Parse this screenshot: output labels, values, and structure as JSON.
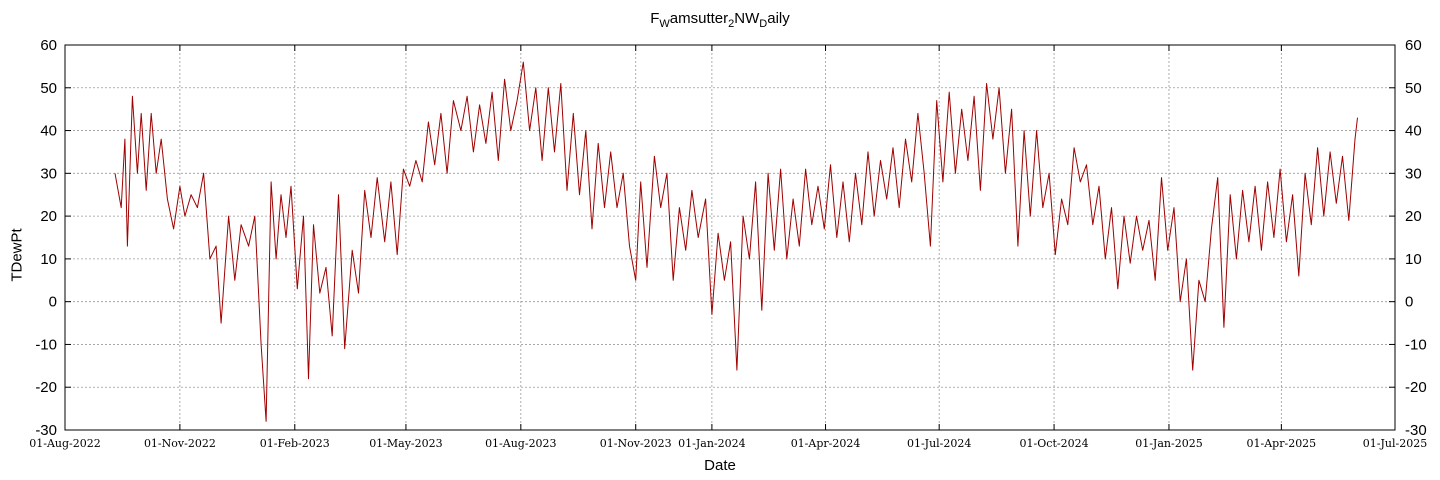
{
  "chart_data": {
    "type": "line",
    "title": {
      "p1": "F",
      "s1": "W",
      "p2": "amsutter",
      "s2": "2",
      "p3": "NW",
      "s3": "D",
      "p4": "aily"
    },
    "xlabel": "Date",
    "ylabel": "TDewPt",
    "ylim": [
      -30,
      60
    ],
    "yticks": [
      -30,
      -20,
      -10,
      0,
      10,
      20,
      30,
      40,
      50,
      60
    ],
    "xlim": [
      "2022-08-01",
      "2025-07-01"
    ],
    "xticks": [
      {
        "date": "2022-08-01",
        "label": "01-Aug-2022"
      },
      {
        "date": "2022-11-01",
        "label": "01-Nov-2022"
      },
      {
        "date": "2023-02-01",
        "label": "01-Feb-2023"
      },
      {
        "date": "2023-05-01",
        "label": "01-May-2023"
      },
      {
        "date": "2023-08-01",
        "label": "01-Aug-2023"
      },
      {
        "date": "2023-11-01",
        "label": "01-Nov-2023"
      },
      {
        "date": "2024-01-01",
        "label": "01-Jan-2024"
      },
      {
        "date": "2024-04-01",
        "label": "01-Apr-2024"
      },
      {
        "date": "2024-07-01",
        "label": "01-Jul-2024"
      },
      {
        "date": "2024-10-01",
        "label": "01-Oct-2024"
      },
      {
        "date": "2025-01-01",
        "label": "01-Jan-2025"
      },
      {
        "date": "2025-04-01",
        "label": "01-Apr-2025"
      },
      {
        "date": "2025-07-01",
        "label": "01-Jul-2025"
      }
    ],
    "grid": true,
    "right_axis": true,
    "series": [
      {
        "color": "#a00000",
        "points": [
          [
            "2022-09-10",
            30
          ],
          [
            "2022-09-15",
            22
          ],
          [
            "2022-09-18",
            38
          ],
          [
            "2022-09-20",
            13
          ],
          [
            "2022-09-24",
            48
          ],
          [
            "2022-09-28",
            30
          ],
          [
            "2022-10-01",
            44
          ],
          [
            "2022-10-05",
            26
          ],
          [
            "2022-10-09",
            44
          ],
          [
            "2022-10-13",
            30
          ],
          [
            "2022-10-17",
            38
          ],
          [
            "2022-10-22",
            24
          ],
          [
            "2022-10-27",
            17
          ],
          [
            "2022-11-01",
            27
          ],
          [
            "2022-11-05",
            20
          ],
          [
            "2022-11-10",
            25
          ],
          [
            "2022-11-15",
            22
          ],
          [
            "2022-11-20",
            30
          ],
          [
            "2022-11-25",
            10
          ],
          [
            "2022-11-30",
            13
          ],
          [
            "2022-12-04",
            -5
          ],
          [
            "2022-12-10",
            20
          ],
          [
            "2022-12-15",
            5
          ],
          [
            "2022-12-20",
            18
          ],
          [
            "2022-12-26",
            13
          ],
          [
            "2022-12-31",
            20
          ],
          [
            "2023-01-05",
            -10
          ],
          [
            "2023-01-09",
            -28
          ],
          [
            "2023-01-13",
            28
          ],
          [
            "2023-01-17",
            10
          ],
          [
            "2023-01-21",
            25
          ],
          [
            "2023-01-25",
            15
          ],
          [
            "2023-01-29",
            27
          ],
          [
            "2023-02-03",
            3
          ],
          [
            "2023-02-08",
            20
          ],
          [
            "2023-02-12",
            -18
          ],
          [
            "2023-02-16",
            18
          ],
          [
            "2023-02-21",
            2
          ],
          [
            "2023-02-26",
            8
          ],
          [
            "2023-03-03",
            -8
          ],
          [
            "2023-03-08",
            25
          ],
          [
            "2023-03-13",
            -11
          ],
          [
            "2023-03-19",
            12
          ],
          [
            "2023-03-24",
            2
          ],
          [
            "2023-03-29",
            26
          ],
          [
            "2023-04-03",
            15
          ],
          [
            "2023-04-08",
            29
          ],
          [
            "2023-04-14",
            14
          ],
          [
            "2023-04-19",
            28
          ],
          [
            "2023-04-24",
            11
          ],
          [
            "2023-04-29",
            31
          ],
          [
            "2023-05-04",
            27
          ],
          [
            "2023-05-09",
            33
          ],
          [
            "2023-05-14",
            28
          ],
          [
            "2023-05-19",
            42
          ],
          [
            "2023-05-24",
            32
          ],
          [
            "2023-05-29",
            44
          ],
          [
            "2023-06-03",
            30
          ],
          [
            "2023-06-08",
            47
          ],
          [
            "2023-06-14",
            40
          ],
          [
            "2023-06-19",
            48
          ],
          [
            "2023-06-24",
            35
          ],
          [
            "2023-06-29",
            46
          ],
          [
            "2023-07-04",
            37
          ],
          [
            "2023-07-09",
            49
          ],
          [
            "2023-07-14",
            33
          ],
          [
            "2023-07-19",
            52
          ],
          [
            "2023-07-24",
            40
          ],
          [
            "2023-07-29",
            47
          ],
          [
            "2023-08-03",
            56
          ],
          [
            "2023-08-08",
            40
          ],
          [
            "2023-08-13",
            50
          ],
          [
            "2023-08-18",
            33
          ],
          [
            "2023-08-23",
            50
          ],
          [
            "2023-08-28",
            35
          ],
          [
            "2023-09-02",
            51
          ],
          [
            "2023-09-07",
            26
          ],
          [
            "2023-09-12",
            44
          ],
          [
            "2023-09-17",
            25
          ],
          [
            "2023-09-22",
            40
          ],
          [
            "2023-09-27",
            17
          ],
          [
            "2023-10-02",
            37
          ],
          [
            "2023-10-07",
            22
          ],
          [
            "2023-10-12",
            35
          ],
          [
            "2023-10-17",
            22
          ],
          [
            "2023-10-22",
            30
          ],
          [
            "2023-10-27",
            13
          ],
          [
            "2023-11-01",
            5
          ],
          [
            "2023-11-05",
            28
          ],
          [
            "2023-11-10",
            8
          ],
          [
            "2023-11-16",
            34
          ],
          [
            "2023-11-21",
            22
          ],
          [
            "2023-11-26",
            30
          ],
          [
            "2023-12-01",
            5
          ],
          [
            "2023-12-06",
            22
          ],
          [
            "2023-12-11",
            12
          ],
          [
            "2023-12-16",
            26
          ],
          [
            "2023-12-21",
            15
          ],
          [
            "2023-12-27",
            24
          ],
          [
            "2024-01-01",
            -3
          ],
          [
            "2024-01-06",
            16
          ],
          [
            "2024-01-11",
            5
          ],
          [
            "2024-01-16",
            14
          ],
          [
            "2024-01-21",
            -16
          ],
          [
            "2024-01-26",
            20
          ],
          [
            "2024-01-31",
            10
          ],
          [
            "2024-02-05",
            28
          ],
          [
            "2024-02-10",
            -2
          ],
          [
            "2024-02-15",
            30
          ],
          [
            "2024-02-20",
            12
          ],
          [
            "2024-02-25",
            31
          ],
          [
            "2024-03-01",
            10
          ],
          [
            "2024-03-06",
            24
          ],
          [
            "2024-03-11",
            13
          ],
          [
            "2024-03-16",
            31
          ],
          [
            "2024-03-21",
            18
          ],
          [
            "2024-03-26",
            27
          ],
          [
            "2024-03-31",
            17
          ],
          [
            "2024-04-05",
            32
          ],
          [
            "2024-04-10",
            15
          ],
          [
            "2024-04-15",
            28
          ],
          [
            "2024-04-20",
            14
          ],
          [
            "2024-04-25",
            30
          ],
          [
            "2024-04-30",
            18
          ],
          [
            "2024-05-05",
            35
          ],
          [
            "2024-05-10",
            20
          ],
          [
            "2024-05-15",
            33
          ],
          [
            "2024-05-20",
            24
          ],
          [
            "2024-05-25",
            36
          ],
          [
            "2024-05-30",
            22
          ],
          [
            "2024-06-04",
            38
          ],
          [
            "2024-06-09",
            28
          ],
          [
            "2024-06-14",
            44
          ],
          [
            "2024-06-19",
            30
          ],
          [
            "2024-06-24",
            13
          ],
          [
            "2024-06-29",
            47
          ],
          [
            "2024-07-04",
            28
          ],
          [
            "2024-07-09",
            49
          ],
          [
            "2024-07-14",
            30
          ],
          [
            "2024-07-19",
            45
          ],
          [
            "2024-07-24",
            33
          ],
          [
            "2024-07-29",
            48
          ],
          [
            "2024-08-03",
            26
          ],
          [
            "2024-08-08",
            51
          ],
          [
            "2024-08-13",
            38
          ],
          [
            "2024-08-18",
            50
          ],
          [
            "2024-08-23",
            30
          ],
          [
            "2024-08-28",
            45
          ],
          [
            "2024-09-02",
            13
          ],
          [
            "2024-09-07",
            40
          ],
          [
            "2024-09-12",
            20
          ],
          [
            "2024-09-17",
            40
          ],
          [
            "2024-09-22",
            22
          ],
          [
            "2024-09-27",
            30
          ],
          [
            "2024-10-02",
            11
          ],
          [
            "2024-10-07",
            24
          ],
          [
            "2024-10-12",
            18
          ],
          [
            "2024-10-17",
            36
          ],
          [
            "2024-10-22",
            28
          ],
          [
            "2024-10-27",
            32
          ],
          [
            "2024-11-01",
            18
          ],
          [
            "2024-11-06",
            27
          ],
          [
            "2024-11-11",
            10
          ],
          [
            "2024-11-16",
            22
          ],
          [
            "2024-11-21",
            3
          ],
          [
            "2024-11-26",
            20
          ],
          [
            "2024-12-01",
            9
          ],
          [
            "2024-12-06",
            20
          ],
          [
            "2024-12-11",
            12
          ],
          [
            "2024-12-16",
            19
          ],
          [
            "2024-12-21",
            5
          ],
          [
            "2024-12-26",
            29
          ],
          [
            "2024-12-31",
            12
          ],
          [
            "2025-01-05",
            22
          ],
          [
            "2025-01-10",
            0
          ],
          [
            "2025-01-15",
            10
          ],
          [
            "2025-01-20",
            -16
          ],
          [
            "2025-01-25",
            5
          ],
          [
            "2025-01-30",
            0
          ],
          [
            "2025-02-04",
            17
          ],
          [
            "2025-02-09",
            29
          ],
          [
            "2025-02-14",
            -6
          ],
          [
            "2025-02-19",
            25
          ],
          [
            "2025-02-24",
            10
          ],
          [
            "2025-03-01",
            26
          ],
          [
            "2025-03-06",
            14
          ],
          [
            "2025-03-11",
            27
          ],
          [
            "2025-03-16",
            12
          ],
          [
            "2025-03-21",
            28
          ],
          [
            "2025-03-26",
            15
          ],
          [
            "2025-03-31",
            31
          ],
          [
            "2025-04-05",
            14
          ],
          [
            "2025-04-10",
            25
          ],
          [
            "2025-04-15",
            6
          ],
          [
            "2025-04-20",
            30
          ],
          [
            "2025-04-25",
            18
          ],
          [
            "2025-04-30",
            36
          ],
          [
            "2025-05-05",
            20
          ],
          [
            "2025-05-10",
            35
          ],
          [
            "2025-05-15",
            23
          ],
          [
            "2025-05-20",
            34
          ],
          [
            "2025-05-25",
            19
          ],
          [
            "2025-05-30",
            38
          ],
          [
            "2025-06-01",
            43
          ]
        ]
      }
    ]
  }
}
